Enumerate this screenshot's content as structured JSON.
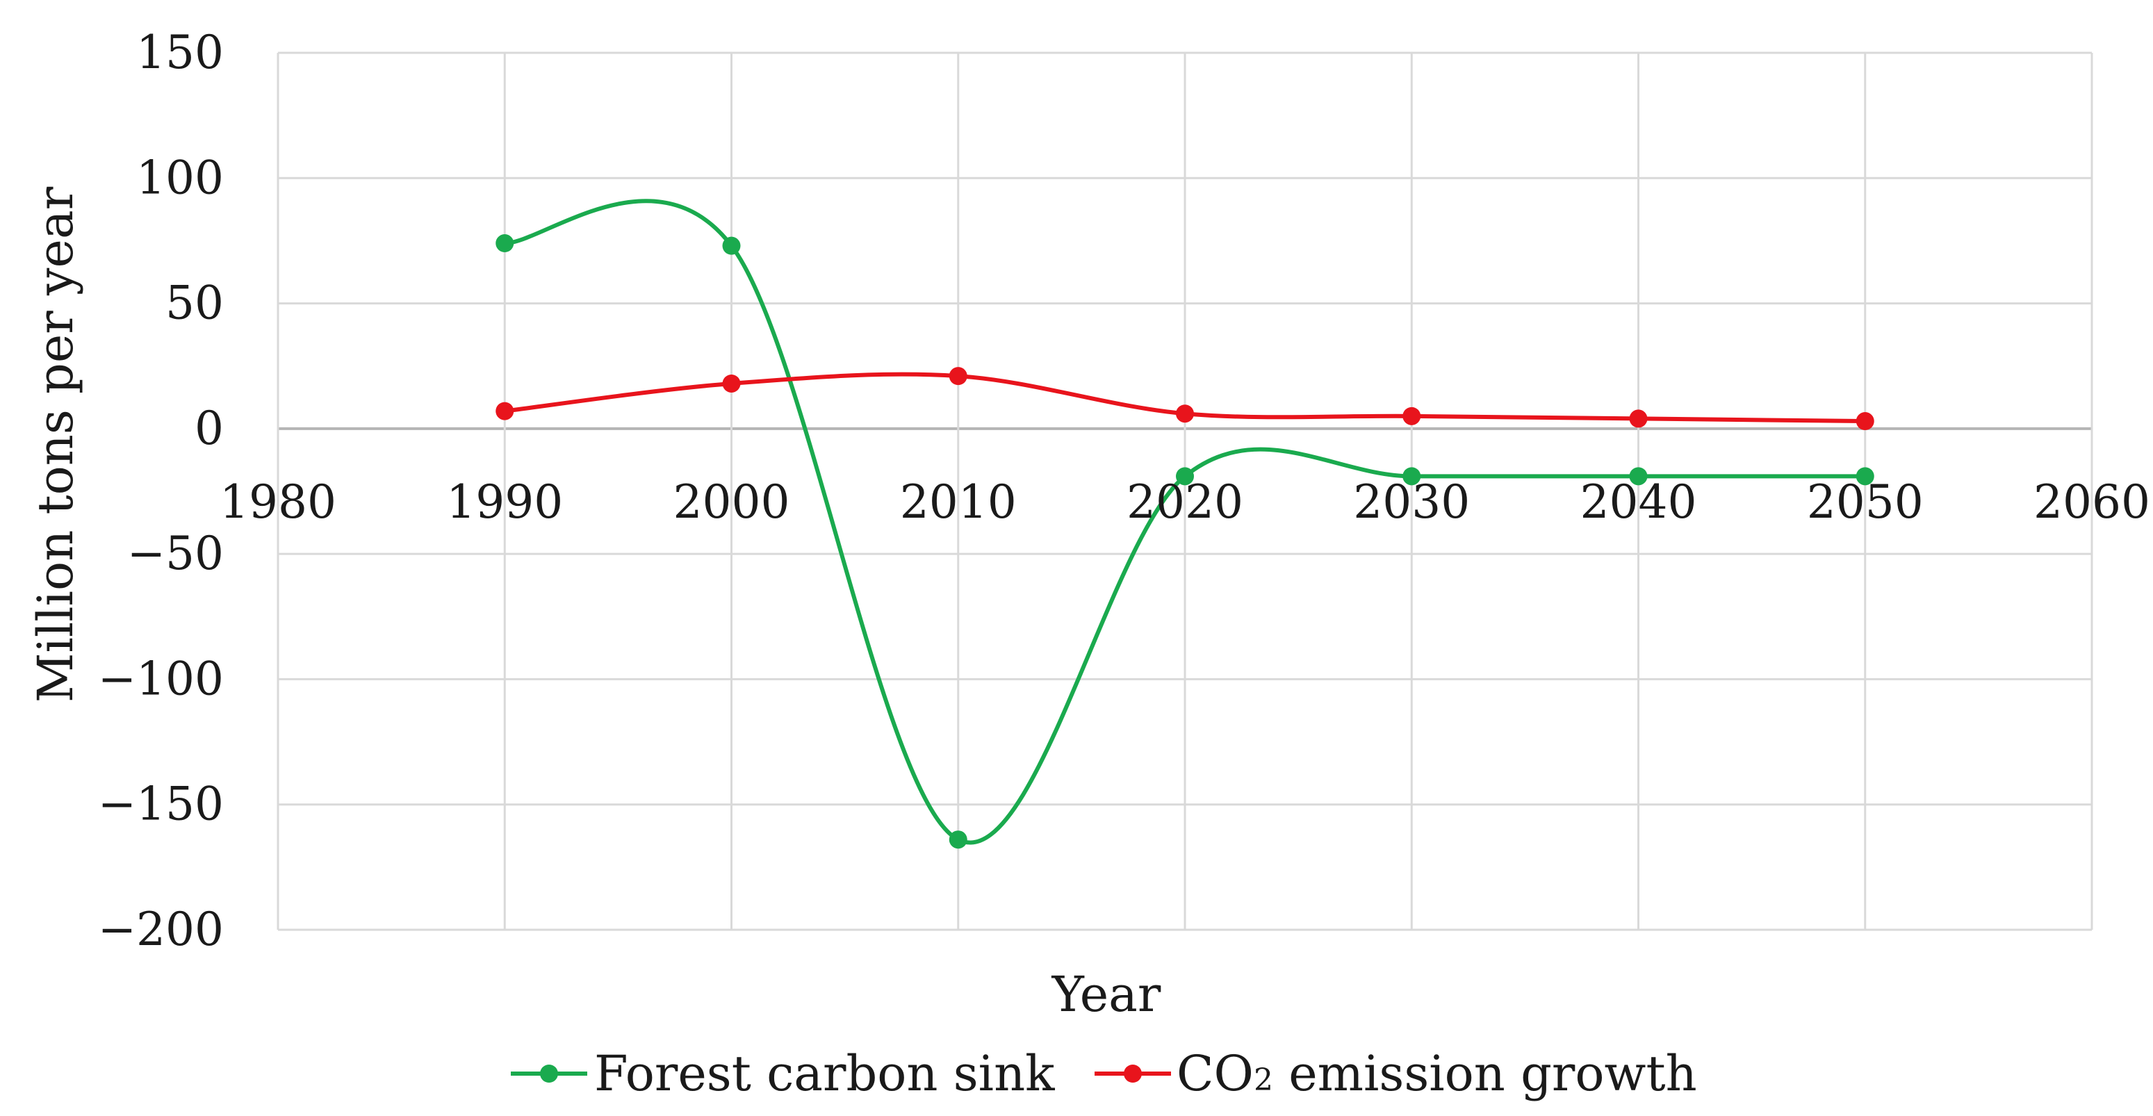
{
  "chart_data": {
    "type": "line",
    "title": "",
    "xlabel": "Year",
    "ylabel": "Million tons per year",
    "xlim": [
      1980,
      2060
    ],
    "ylim": [
      -200,
      150
    ],
    "x_ticks": [
      1980,
      1990,
      2000,
      2010,
      2020,
      2030,
      2040,
      2050,
      2060
    ],
    "y_ticks": [
      150,
      100,
      50,
      0,
      -50,
      -100,
      -150,
      -200
    ],
    "x_tick_labels": [
      "1980",
      "1990",
      "2000",
      "2010",
      "2020",
      "2030",
      "2040",
      "2050",
      "2060"
    ],
    "y_tick_labels": [
      "150",
      "100",
      "50",
      "0",
      "−50",
      "−100",
      "−150",
      "−200"
    ],
    "grid": true,
    "smooth": true,
    "legend_position": "bottom",
    "series": [
      {
        "name": "Forest carbon sink",
        "color": "#1aaa4e",
        "x": [
          1990,
          2000,
          2010,
          2020,
          2030,
          2040,
          2050
        ],
        "values": [
          74,
          73,
          -164,
          -19,
          -19,
          -19,
          -19
        ]
      },
      {
        "name": "CO₂ emission growth",
        "legend_main": "CO",
        "legend_sub": "2",
        "legend_rest": " emission growth",
        "color": "#e8141c",
        "x": [
          1990,
          2000,
          2010,
          2020,
          2030,
          2040,
          2050
        ],
        "values": [
          7,
          18,
          21,
          6,
          5,
          4,
          3
        ]
      }
    ]
  }
}
